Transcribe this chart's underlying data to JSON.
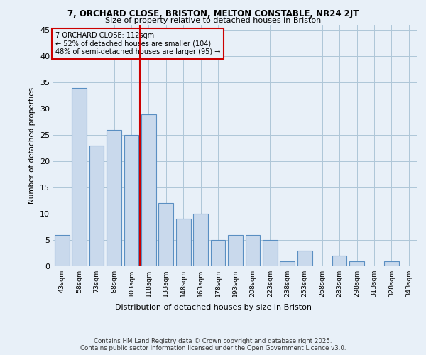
{
  "title1": "7, ORCHARD CLOSE, BRISTON, MELTON CONSTABLE, NR24 2JT",
  "title2": "Size of property relative to detached houses in Briston",
  "xlabel": "Distribution of detached houses by size in Briston",
  "ylabel": "Number of detached properties",
  "categories": [
    "43sqm",
    "58sqm",
    "73sqm",
    "88sqm",
    "103sqm",
    "118sqm",
    "133sqm",
    "148sqm",
    "163sqm",
    "178sqm",
    "193sqm",
    "208sqm",
    "223sqm",
    "238sqm",
    "253sqm",
    "268sqm",
    "283sqm",
    "298sqm",
    "313sqm",
    "328sqm",
    "343sqm"
  ],
  "values": [
    6,
    34,
    23,
    26,
    25,
    29,
    12,
    9,
    10,
    5,
    6,
    6,
    5,
    1,
    3,
    0,
    2,
    1,
    0,
    1,
    0
  ],
  "bar_color": "#c9d9ec",
  "bar_edge_color": "#5a8fc2",
  "grid_color": "#aec6d8",
  "background_color": "#e8f0f8",
  "vline_x": 4.5,
  "vline_color": "#cc0000",
  "annotation_title": "7 ORCHARD CLOSE: 112sqm",
  "annotation_line1": "← 52% of detached houses are smaller (104)",
  "annotation_line2": "48% of semi-detached houses are larger (95) →",
  "annotation_box_color": "#cc0000",
  "ylim": [
    0,
    46
  ],
  "yticks": [
    0,
    5,
    10,
    15,
    20,
    25,
    30,
    35,
    40,
    45
  ],
  "footer1": "Contains HM Land Registry data © Crown copyright and database right 2025.",
  "footer2": "Contains public sector information licensed under the Open Government Licence v3.0."
}
